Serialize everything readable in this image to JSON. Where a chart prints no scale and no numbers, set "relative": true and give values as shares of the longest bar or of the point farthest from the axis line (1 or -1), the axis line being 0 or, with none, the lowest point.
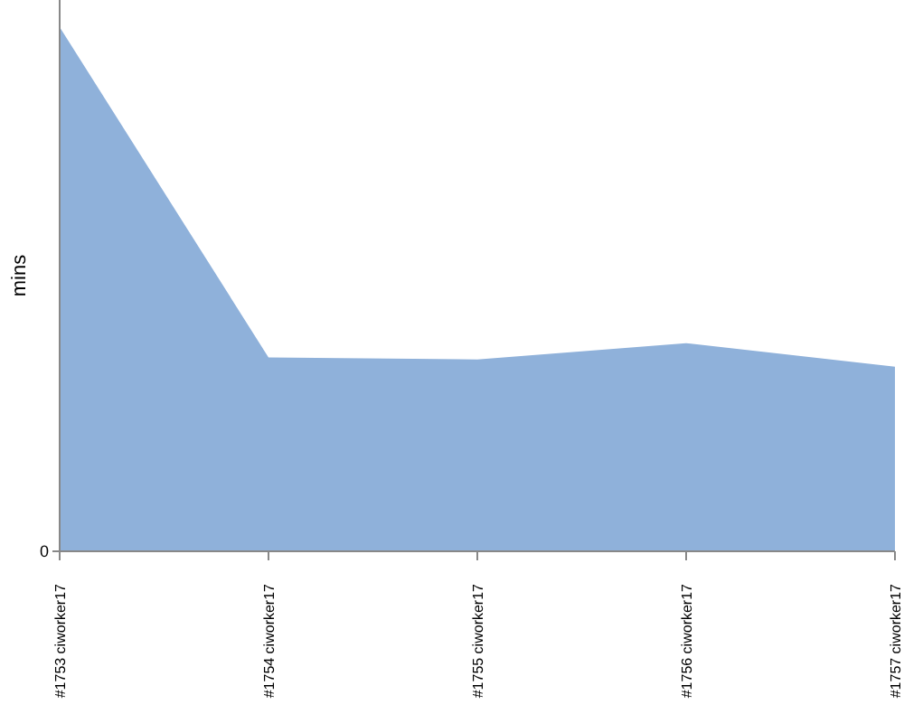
{
  "chart_data": {
    "type": "area",
    "relative": true,
    "ylabel": "mins",
    "annotations": [
      "0"
    ],
    "categories": [
      "#1753 ciworker17",
      "#1754 ciworker17",
      "#1755 ciworker17",
      "#1756 ciworker17",
      "#1757 ciworker17"
    ],
    "series": [
      {
        "color": "#8fb1da",
        "values": [
          1,
          0.37,
          0.366,
          0.397,
          0.352
        ]
      }
    ]
  }
}
